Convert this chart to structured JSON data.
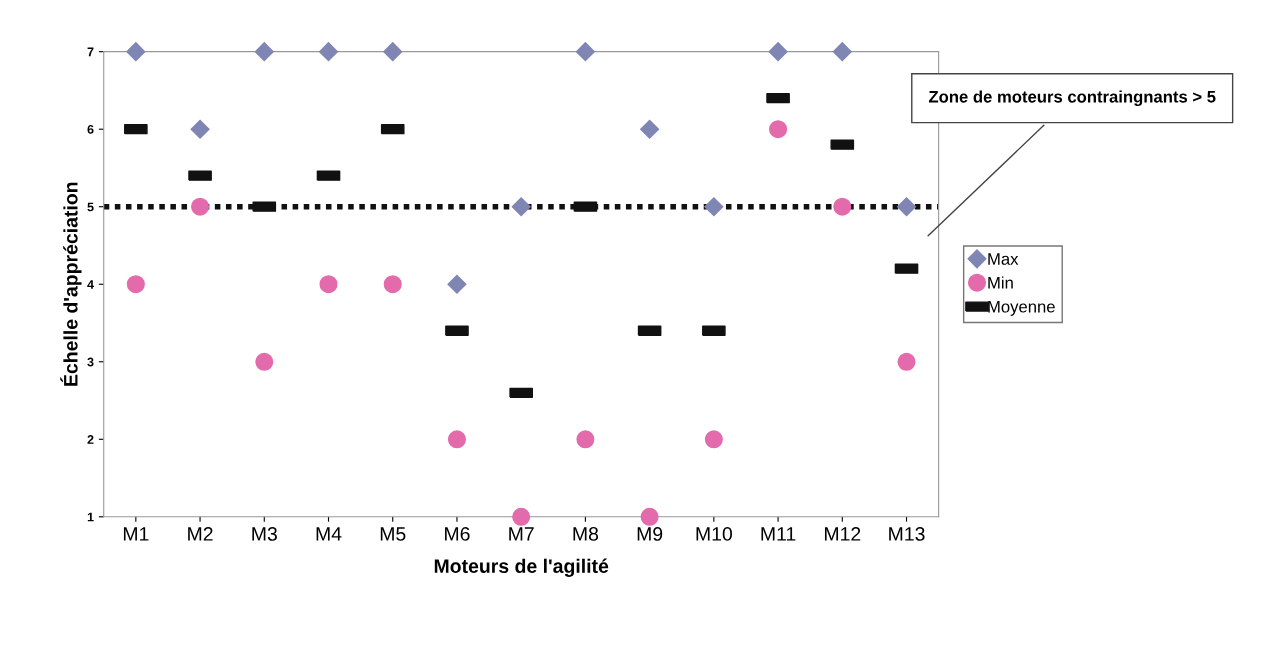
{
  "chart_data": {
    "type": "scatter",
    "xlabel": "Moteurs de l'agilité",
    "ylabel": "Échelle d'appréciation",
    "categories": [
      "M1",
      "M2",
      "M3",
      "M4",
      "M5",
      "M6",
      "M7",
      "M8",
      "M9",
      "M10",
      "M11",
      "M12",
      "M13"
    ],
    "series": [
      {
        "name": "Max",
        "color": "#7f86b4",
        "marker": "diamond",
        "values": [
          7,
          6,
          7,
          7,
          7,
          4,
          5,
          7,
          6,
          5,
          7,
          7,
          5
        ]
      },
      {
        "name": "Min",
        "color": "#e36bac",
        "marker": "circle",
        "values": [
          4,
          5,
          3,
          4,
          4,
          2,
          1,
          2,
          1,
          2,
          6,
          5,
          3
        ]
      },
      {
        "name": "Moyenne",
        "color": "#111111",
        "marker": "square",
        "values": [
          6.0,
          5.4,
          5.0,
          5.4,
          6.0,
          3.4,
          2.6,
          5.0,
          3.4,
          3.4,
          6.4,
          5.8,
          4.2
        ]
      }
    ],
    "ylim": [
      1,
      7
    ],
    "yticks": [
      1,
      2,
      3,
      4,
      5,
      6,
      7
    ],
    "ref_lines": [
      {
        "axis": "y",
        "value": 5,
        "color": "#111111",
        "line_style": "dotted"
      }
    ],
    "annotations": [
      "Zone de moteurs contraingnants > 5"
    ],
    "legend": "right",
    "grid": false
  }
}
